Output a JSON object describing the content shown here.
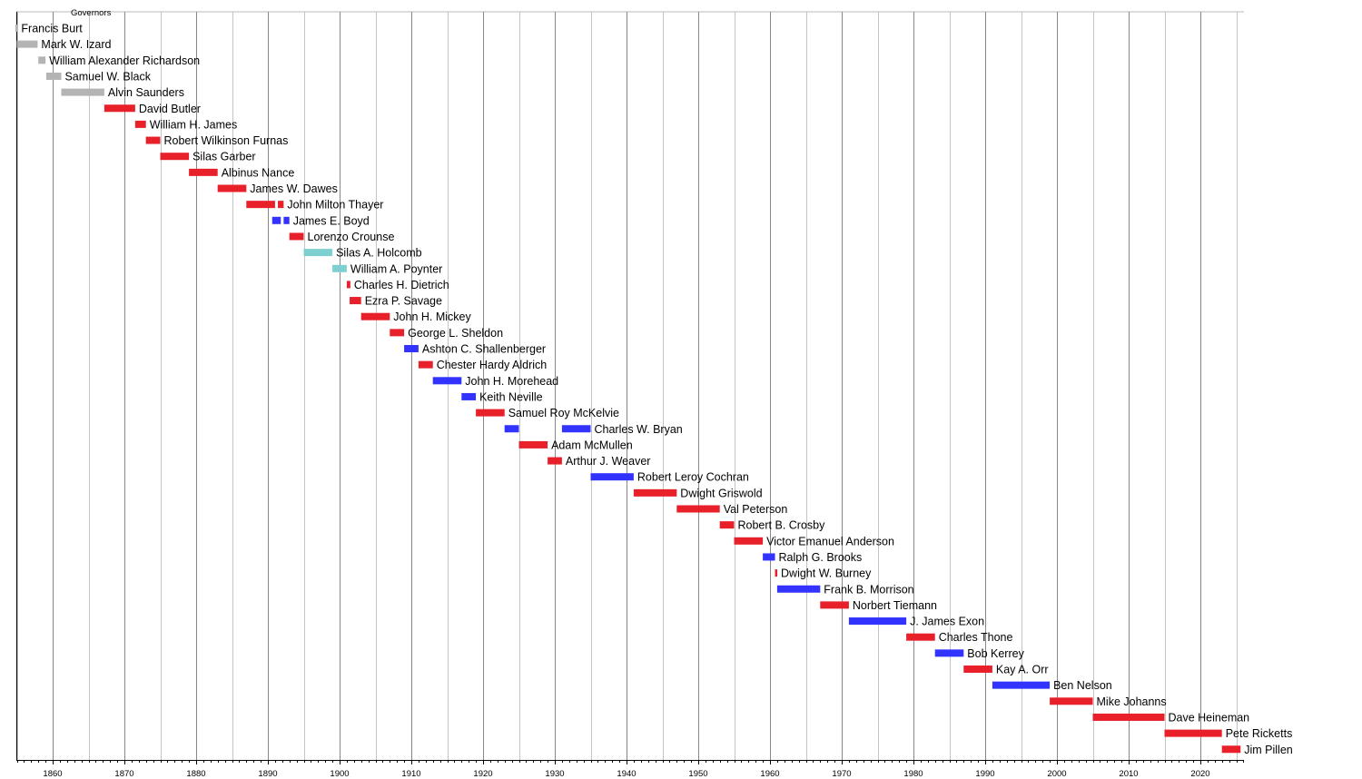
{
  "chart_data": {
    "type": "timeline",
    "title": "Governors",
    "xlim": [
      1854,
      2026.5
    ],
    "major_ticks": [
      1860,
      1870,
      1880,
      1890,
      1900,
      1910,
      1920,
      1930,
      1940,
      1950,
      1960,
      1970,
      1980,
      1990,
      2000,
      2010,
      2020
    ],
    "tick_labels": [
      "1860",
      "1870",
      "1880",
      "1890",
      "1900",
      "1910",
      "1920",
      "1930",
      "1940",
      "1950",
      "1960",
      "1970",
      "1980",
      "1990",
      "2000",
      "2010",
      "2020"
    ],
    "colors": {
      "territorial": "#b4b4b4",
      "republican": "#e8202a",
      "democratic": "#3333ff",
      "populist": "#7ecfd0"
    },
    "governors": [
      {
        "name": "Francis Burt",
        "party": "territorial",
        "terms": [
          [
            1854.8,
            1854.9
          ]
        ]
      },
      {
        "name": "Mark W. Izard",
        "party": "territorial",
        "terms": [
          [
            1855.0,
            1857.9
          ]
        ]
      },
      {
        "name": "William Alexander Richardson",
        "party": "territorial",
        "terms": [
          [
            1858.0,
            1859.0
          ]
        ]
      },
      {
        "name": "Samuel W. Black",
        "party": "territorial",
        "terms": [
          [
            1859.1,
            1861.2
          ]
        ]
      },
      {
        "name": "Alvin Saunders",
        "party": "territorial",
        "terms": [
          [
            1861.2,
            1867.2
          ]
        ]
      },
      {
        "name": "David Butler",
        "party": "republican",
        "terms": [
          [
            1867.2,
            1871.5
          ]
        ]
      },
      {
        "name": "William H. James",
        "party": "republican",
        "terms": [
          [
            1871.5,
            1873.0
          ]
        ]
      },
      {
        "name": "Robert Wilkinson Furnas",
        "party": "republican",
        "terms": [
          [
            1873.0,
            1875.0
          ]
        ]
      },
      {
        "name": "Silas Garber",
        "party": "republican",
        "terms": [
          [
            1875.0,
            1879.0
          ]
        ]
      },
      {
        "name": "Albinus Nance",
        "party": "republican",
        "terms": [
          [
            1879.0,
            1883.0
          ]
        ]
      },
      {
        "name": "James W. Dawes",
        "party": "republican",
        "terms": [
          [
            1883.0,
            1887.0
          ]
        ]
      },
      {
        "name": "John Milton Thayer",
        "party": "republican",
        "terms": [
          [
            1887.0,
            1891.0
          ],
          [
            1891.4,
            1892.2
          ]
        ]
      },
      {
        "name": "James E. Boyd",
        "party": "democratic",
        "terms": [
          [
            1890.6,
            1891.8
          ],
          [
            1892.2,
            1893.0
          ]
        ]
      },
      {
        "name": "Lorenzo Crounse",
        "party": "republican",
        "terms": [
          [
            1893.0,
            1895.0
          ]
        ]
      },
      {
        "name": "Silas A. Holcomb",
        "party": "populist",
        "terms": [
          [
            1895.0,
            1899.0
          ]
        ]
      },
      {
        "name": "William A. Poynter",
        "party": "populist",
        "terms": [
          [
            1899.0,
            1901.0
          ]
        ]
      },
      {
        "name": "Charles H. Dietrich",
        "party": "republican",
        "terms": [
          [
            1901.0,
            1901.5
          ]
        ]
      },
      {
        "name": "Ezra P. Savage",
        "party": "republican",
        "terms": [
          [
            1901.4,
            1903.0
          ]
        ]
      },
      {
        "name": "John H. Mickey",
        "party": "republican",
        "terms": [
          [
            1903.0,
            1907.0
          ]
        ]
      },
      {
        "name": "George L. Sheldon",
        "party": "republican",
        "terms": [
          [
            1907.0,
            1909.0
          ]
        ]
      },
      {
        "name": "Ashton C. Shallenberger",
        "party": "democratic",
        "terms": [
          [
            1909.0,
            1911.0
          ]
        ]
      },
      {
        "name": "Chester Hardy Aldrich",
        "party": "republican",
        "terms": [
          [
            1911.0,
            1913.0
          ]
        ]
      },
      {
        "name": "John H. Morehead",
        "party": "democratic",
        "terms": [
          [
            1913.0,
            1917.0
          ]
        ]
      },
      {
        "name": "Keith Neville",
        "party": "democratic",
        "terms": [
          [
            1917.0,
            1919.0
          ]
        ]
      },
      {
        "name": "Samuel Roy McKelvie",
        "party": "republican",
        "terms": [
          [
            1919.0,
            1923.0
          ]
        ]
      },
      {
        "name": "Charles W. Bryan",
        "party": "democratic",
        "terms": [
          [
            1923.0,
            1925.0
          ],
          [
            1931.0,
            1935.0
          ]
        ]
      },
      {
        "name": "Adam McMullen",
        "party": "republican",
        "terms": [
          [
            1925.0,
            1929.0
          ]
        ]
      },
      {
        "name": "Arthur J. Weaver",
        "party": "republican",
        "terms": [
          [
            1929.0,
            1931.0
          ]
        ]
      },
      {
        "name": "Robert Leroy Cochran",
        "party": "democratic",
        "terms": [
          [
            1935.0,
            1941.0
          ]
        ]
      },
      {
        "name": "Dwight Griswold",
        "party": "republican",
        "terms": [
          [
            1941.0,
            1947.0
          ]
        ]
      },
      {
        "name": "Val Peterson",
        "party": "republican",
        "terms": [
          [
            1947.0,
            1953.0
          ]
        ]
      },
      {
        "name": "Robert B. Crosby",
        "party": "republican",
        "terms": [
          [
            1953.0,
            1955.0
          ]
        ]
      },
      {
        "name": "Victor Emanuel Anderson",
        "party": "republican",
        "terms": [
          [
            1955.0,
            1959.0
          ]
        ]
      },
      {
        "name": "Ralph G. Brooks",
        "party": "democratic",
        "terms": [
          [
            1959.0,
            1960.7
          ]
        ]
      },
      {
        "name": "Dwight W. Burney",
        "party": "republican",
        "terms": [
          [
            1960.7,
            1961.0
          ]
        ]
      },
      {
        "name": "Frank B. Morrison",
        "party": "democratic",
        "terms": [
          [
            1961.0,
            1967.0
          ]
        ]
      },
      {
        "name": "Norbert Tiemann",
        "party": "republican",
        "terms": [
          [
            1967.0,
            1971.0
          ]
        ]
      },
      {
        "name": "J. James Exon",
        "party": "democratic",
        "terms": [
          [
            1971.0,
            1979.0
          ]
        ]
      },
      {
        "name": "Charles Thone",
        "party": "republican",
        "terms": [
          [
            1979.0,
            1983.0
          ]
        ]
      },
      {
        "name": "Bob Kerrey",
        "party": "democratic",
        "terms": [
          [
            1983.0,
            1987.0
          ]
        ]
      },
      {
        "name": "Kay A. Orr",
        "party": "republican",
        "terms": [
          [
            1987.0,
            1991.0
          ]
        ]
      },
      {
        "name": "Ben Nelson",
        "party": "democratic",
        "terms": [
          [
            1991.0,
            1999.0
          ]
        ]
      },
      {
        "name": "Mike Johanns",
        "party": "republican",
        "terms": [
          [
            1999.0,
            2005.0
          ]
        ]
      },
      {
        "name": "Dave Heineman",
        "party": "republican",
        "terms": [
          [
            2005.0,
            2015.0
          ]
        ]
      },
      {
        "name": "Pete Ricketts",
        "party": "republican",
        "terms": [
          [
            2015.0,
            2023.0
          ]
        ]
      },
      {
        "name": "Jim Pillen",
        "party": "republican",
        "terms": [
          [
            2023.0,
            2025.6
          ]
        ]
      }
    ]
  }
}
